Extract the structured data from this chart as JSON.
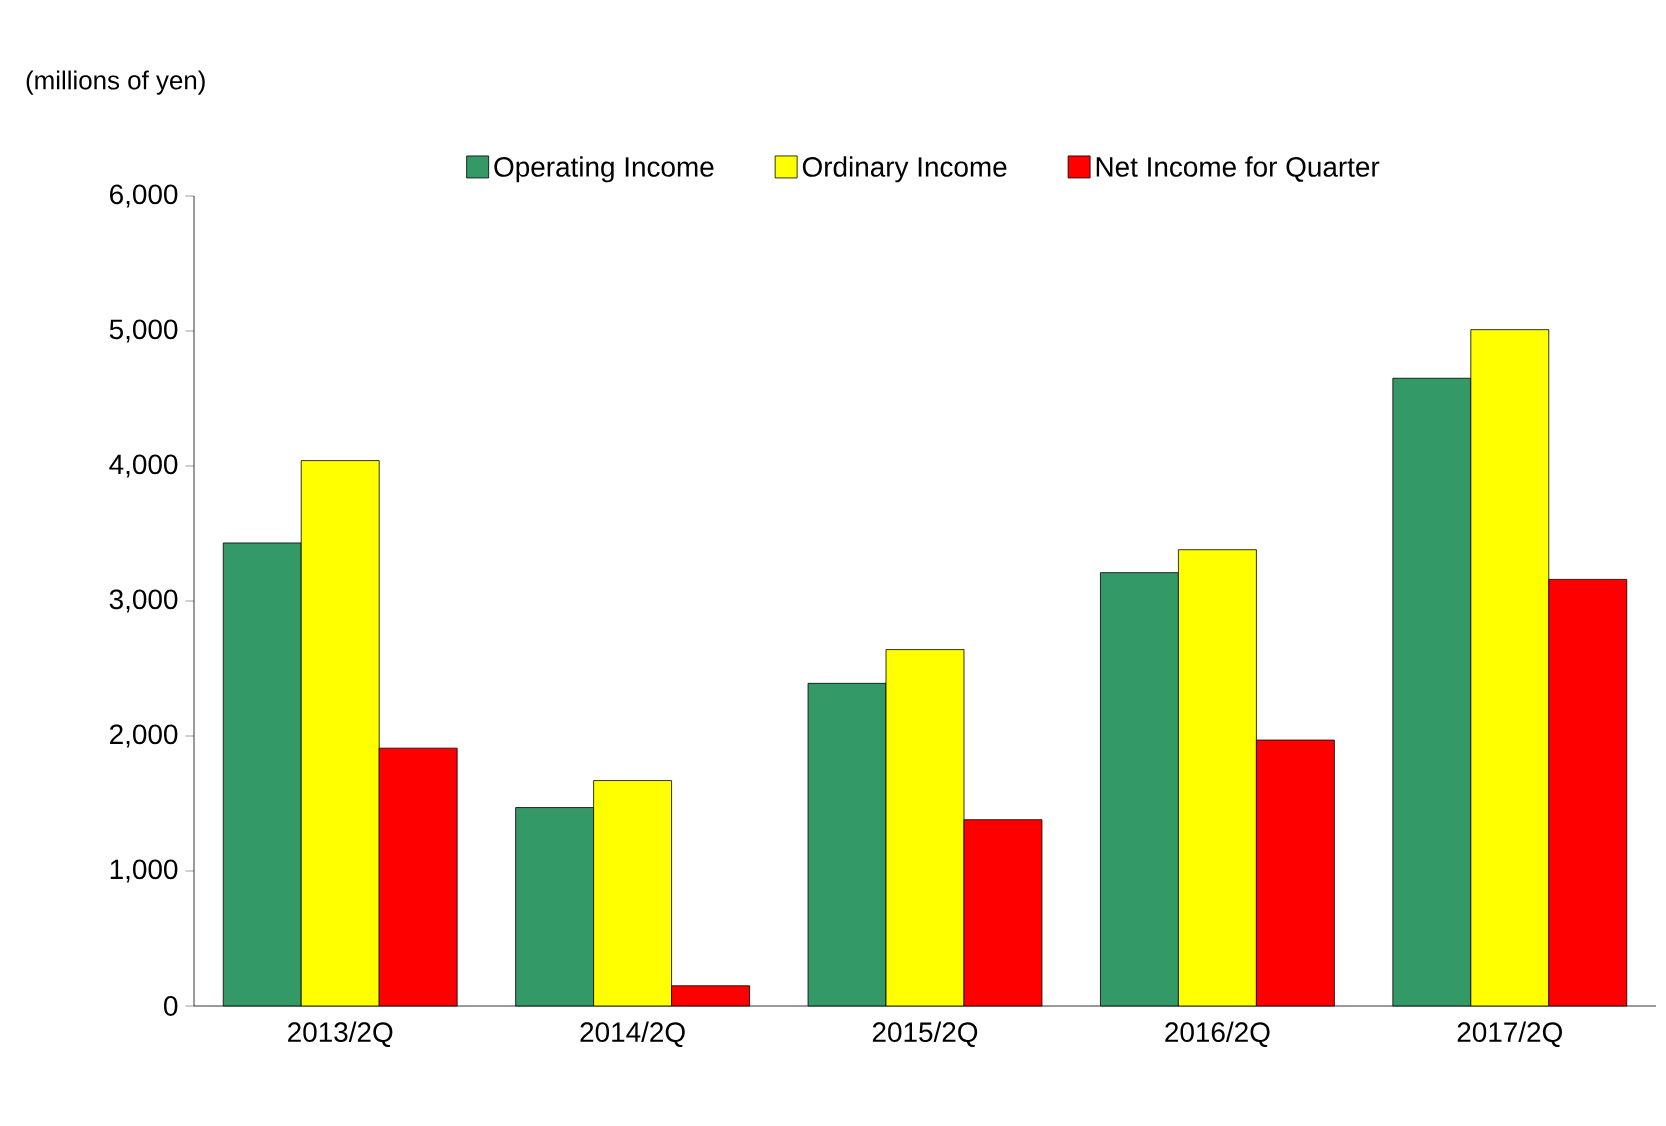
{
  "chart_data": {
    "type": "bar",
    "ylabel": "(millions of yen)",
    "categories": [
      "2013/2Q",
      "2014/2Q",
      "2015/2Q",
      "2016/2Q",
      "2017/2Q"
    ],
    "series": [
      {
        "name": "Operating Income",
        "color": "#339966",
        "values": [
          3430,
          1470,
          2390,
          3210,
          4650
        ]
      },
      {
        "name": "Ordinary Income",
        "color": "#ffff00",
        "values": [
          4040,
          1670,
          2640,
          3380,
          5010
        ]
      },
      {
        "name": "Net Income for Quarter",
        "color": "#ff0000",
        "values": [
          1910,
          150,
          1380,
          1970,
          3160
        ]
      }
    ],
    "ylim": [
      0,
      6000
    ],
    "yticks": [
      0,
      {
        "value": 1000,
        "label": "1,000"
      },
      {
        "value": 2000,
        "label": "2,000"
      },
      {
        "value": 3000,
        "label": "3,000"
      },
      {
        "value": 4000,
        "label": "4,000"
      },
      {
        "value": 5000,
        "label": "5,000"
      },
      {
        "value": 6000,
        "label": "6,000"
      }
    ],
    "grid": false,
    "legend": "top"
  }
}
